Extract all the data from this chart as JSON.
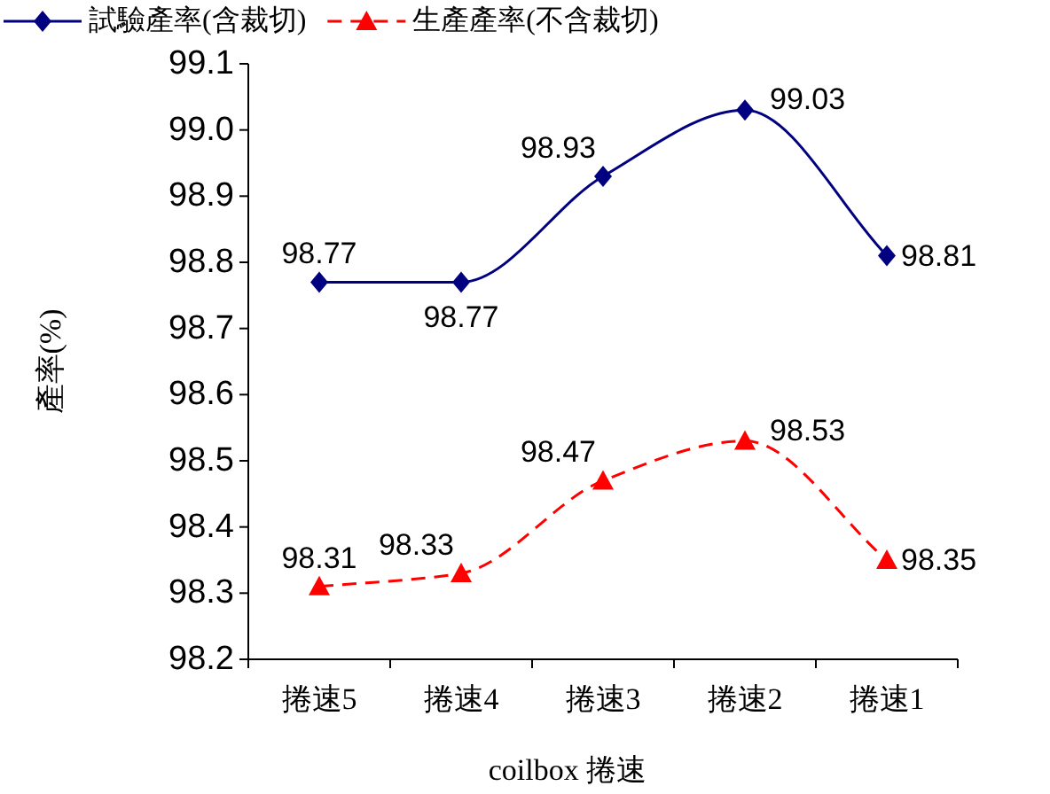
{
  "chart_data": {
    "type": "line",
    "xlabel": "coilbox 捲速",
    "ylabel": "產率(%)",
    "categories": [
      "捲速5",
      "捲速4",
      "捲速3",
      "捲速2",
      "捲速1"
    ],
    "series": [
      {
        "name": "試驗產率(含裁切)",
        "color": "#000080",
        "values": [
          98.77,
          98.77,
          98.93,
          99.03,
          98.81
        ],
        "marker": "diamond",
        "line_style": "solid"
      },
      {
        "name": "生產產率(不含裁切)",
        "color": "#ff0000",
        "values": [
          98.31,
          98.33,
          98.47,
          98.53,
          98.35
        ],
        "marker": "triangle",
        "line_style": "dashed"
      }
    ],
    "ylim": [
      98.2,
      99.1
    ],
    "yticks": [
      98.2,
      98.3,
      98.4,
      98.5,
      98.6,
      98.7,
      98.8,
      98.9,
      {
        "value": 99,
        "label": "99.0"
      },
      99.1
    ],
    "data_labels": true,
    "legend": "top",
    "grid": false
  }
}
